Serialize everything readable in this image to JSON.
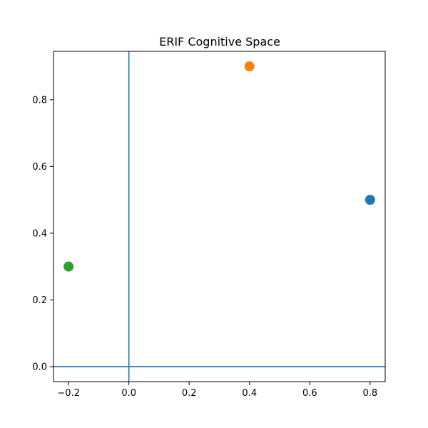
{
  "chart_data": {
    "type": "scatter",
    "title": "ERIF Cognitive Space",
    "xlabel": "",
    "ylabel": "",
    "xlim": [
      -0.25,
      0.85
    ],
    "ylim": [
      -0.045,
      0.945
    ],
    "xticks": [
      -0.2,
      0.0,
      0.2,
      0.4,
      0.6,
      0.8
    ],
    "xtick_labels": [
      "−0.2",
      "0.0",
      "0.2",
      "0.4",
      "0.6",
      "0.8"
    ],
    "yticks": [
      0.0,
      0.2,
      0.4,
      0.6,
      0.8
    ],
    "ytick_labels": [
      "0.0",
      "0.2",
      "0.4",
      "0.6",
      "0.8"
    ],
    "reference_lines": {
      "horizontal_y": 0,
      "vertical_x": 0,
      "color": "#1f77b4"
    },
    "grid": false,
    "legend": "none",
    "series": [
      {
        "x": [
          0.8
        ],
        "y": [
          0.5
        ],
        "color": "#1f77b4"
      },
      {
        "x": [
          0.4
        ],
        "y": [
          0.9
        ],
        "color": "#ff7f0e"
      },
      {
        "x": [
          -0.2
        ],
        "y": [
          0.3
        ],
        "color": "#2ca02c"
      }
    ]
  }
}
